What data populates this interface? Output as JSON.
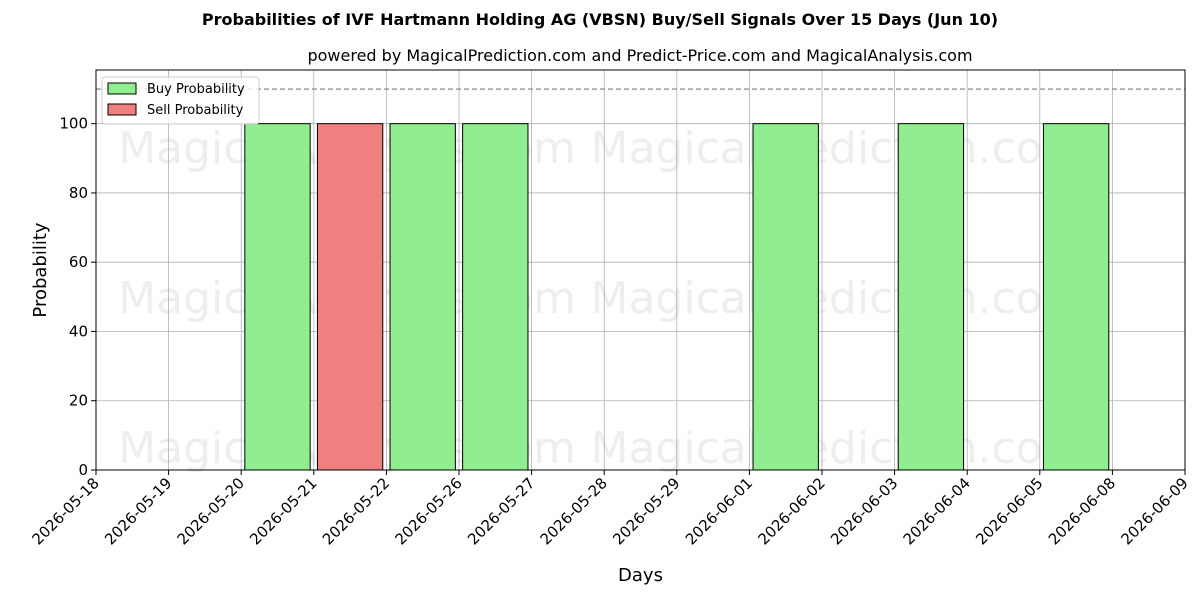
{
  "title": "Probabilities of IVF Hartmann Holding AG (VBSN) Buy/Sell Signals Over 15 Days (Jun 10)",
  "subtitle": "powered by MagicalPrediction.com and Predict-Price.com and MagicalAnalysis.com",
  "watermarks": [
    "MagicalAnalysis.com",
    "MagicalPrediction.com"
  ],
  "colors": {
    "buy": "#90ee90",
    "sell": "#f08080",
    "edge": "#000000",
    "grid": "#b0b0b0",
    "refline": "#808080"
  },
  "chart_data": {
    "type": "bar",
    "title": "Probabilities of IVF Hartmann Holding AG (VBSN) Buy/Sell Signals Over 15 Days (Jun 10)",
    "xlabel": "Days",
    "ylabel": "Probability",
    "ylim": [
      0,
      115.5
    ],
    "yticks": [
      0,
      20,
      40,
      60,
      80,
      100
    ],
    "reference_line": 110,
    "grid": true,
    "legend_placement": "top-left",
    "categories": [
      "2026-05-18",
      "2026-05-19",
      "2026-05-20",
      "2026-05-21",
      "2026-05-22",
      "2026-05-26",
      "2026-05-27",
      "2026-05-28",
      "2026-05-29",
      "2026-06-01",
      "2026-06-02",
      "2026-06-03",
      "2026-06-04",
      "2026-06-05",
      "2026-06-08",
      "2026-06-09"
    ],
    "series": [
      {
        "name": "Buy Probability",
        "points": [
          {
            "x": "2026-05-20",
            "y": 100
          },
          {
            "x": "2026-05-22",
            "y": 100
          },
          {
            "x": "2026-05-26",
            "y": 100
          },
          {
            "x": "2026-06-01",
            "y": 100
          },
          {
            "x": "2026-06-03",
            "y": 100
          },
          {
            "x": "2026-06-05",
            "y": 100
          }
        ]
      },
      {
        "name": "Sell Probability",
        "points": [
          {
            "x": "2026-05-21",
            "y": 100
          }
        ]
      }
    ]
  }
}
